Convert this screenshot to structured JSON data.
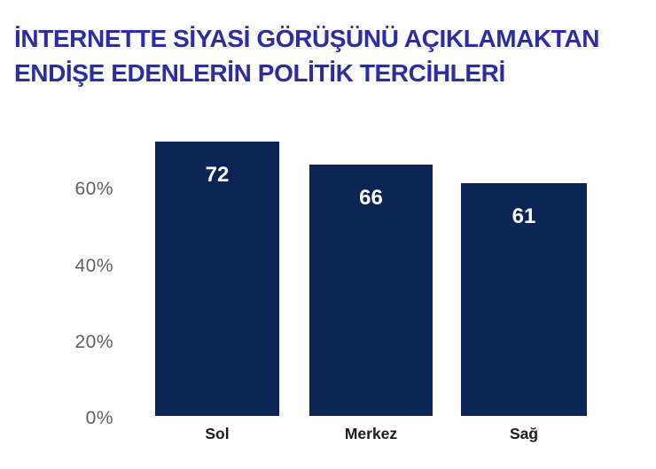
{
  "title": {
    "line1": "İNTERNETTE SİYASİ GÖRÜŞÜNÜ AÇIKLAMAKTAN",
    "line2": "ENDİŞE EDENLERİN POLİTİK TERCİHLERİ"
  },
  "colors": {
    "background": "#FFFFFF",
    "title": "#2C2CA3",
    "bar": "#0B2355",
    "axis_label": "#606060",
    "category_label": "#1B1B1B",
    "value_label": "#FFFFFF"
  },
  "chart_data": {
    "type": "bar",
    "title": "İNTERNETTE SİYASİ GÖRÜŞÜNÜ AÇIKLAMAKTAN ENDİŞE EDENLERİN POLİTİK TERCİHLERİ",
    "categories": [
      "Sol",
      "Merkez",
      "Sağ"
    ],
    "values": [
      72,
      66,
      61
    ],
    "value_labels": [
      "72",
      "66",
      "61"
    ],
    "yticks": [
      {
        "value": 0,
        "label": "0%"
      },
      {
        "value": 20,
        "label": "20%"
      },
      {
        "value": 40,
        "label": "40%"
      },
      {
        "value": 60,
        "label": "60%"
      }
    ],
    "ylim": [
      0,
      75
    ],
    "xlabel": "",
    "ylabel": "",
    "grid": false,
    "legend": false,
    "bar_label_position": "inside-top",
    "unit": "percent"
  }
}
